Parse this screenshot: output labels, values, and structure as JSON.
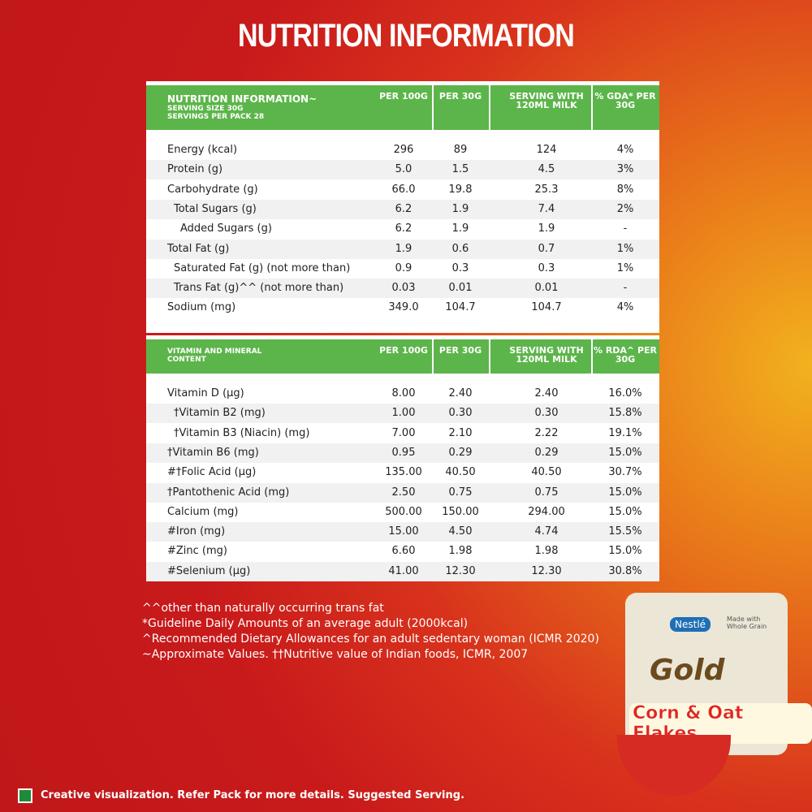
{
  "header": {
    "title": "NUTRITION INFORMATION"
  },
  "table1": {
    "title": "NUTRITION INFORMATION~",
    "serving_size": "SERVING SIZE 30G",
    "servings": "SERVINGS PER PACK 28",
    "columns": [
      "PER 100G",
      "PER 30G",
      "SERVING WITH 120ML MILK",
      "% GDA* PER 30G"
    ],
    "rows": [
      [
        "Energy (kcal)",
        "296",
        "89",
        "124",
        "4%"
      ],
      [
        "Protein (g)",
        "5.0",
        "1.5",
        "4.5",
        "3%"
      ],
      [
        "Carbohydrate (g)",
        "66.0",
        "19.8",
        "25.3",
        "8%"
      ],
      [
        "Total Sugars (g)",
        "6.2",
        "1.9",
        "7.4",
        "2%"
      ],
      [
        "Added Sugars (g)",
        "6.2",
        "1.9",
        "1.9",
        "-"
      ],
      [
        "Total Fat (g)",
        "1.9",
        "0.6",
        "0.7",
        "1%"
      ],
      [
        "Saturated Fat (g) (not more than)",
        "0.9",
        "0.3",
        "0.3",
        "1%"
      ],
      [
        "Trans Fat (g)^^ (not more than)",
        "0.03",
        "0.01",
        "0.01",
        "-"
      ],
      [
        "Sodium (mg)",
        "349.0",
        "104.7",
        "104.7",
        "4%"
      ]
    ]
  },
  "table2": {
    "title": "VITAMIN AND MINERAL CONTENT",
    "columns": [
      "PER 100G",
      "PER 30G",
      "SERVING WITH 120ML MILK",
      "% RDA^ PER 30G"
    ],
    "rows": [
      [
        "Vitamin D (µg)",
        "8.00",
        "2.40",
        "2.40",
        "16.0%"
      ],
      [
        "†Vitamin B2 (mg)",
        "1.00",
        "0.30",
        "0.30",
        "15.8%"
      ],
      [
        "†Vitamin B3 (Niacin) (mg)",
        "7.00",
        "2.10",
        "2.22",
        "19.1%"
      ],
      [
        "†Vitamin B6 (mg)",
        "0.95",
        "0.29",
        "0.29",
        "15.0%"
      ],
      [
        "#†Folic Acid (µg)",
        "135.00",
        "40.50",
        "40.50",
        "30.7%"
      ],
      [
        "†Pantothenic Acid (mg)",
        "2.50",
        "0.75",
        "0.75",
        "15.0%"
      ],
      [
        "Calcium (mg)",
        "500.00",
        "150.00",
        "294.00",
        "15.0%"
      ],
      [
        "#Iron (mg)",
        "15.00",
        "4.50",
        "4.74",
        "15.5%"
      ],
      [
        "#Zinc (mg)",
        "6.60",
        "1.98",
        "1.98",
        "15.0%"
      ],
      [
        "#Selenium (µg)",
        "41.00",
        "12.30",
        "12.30",
        "30.8%"
      ]
    ]
  },
  "footnotes": [
    "^^other than naturally occurring trans fat",
    "*Guideline Daily Amounts of an average adult (2000kcal)",
    "^Recommended Dietary Allowances for an adult sedentary woman (ICMR 2020)",
    "~Approximate Values. ††Nutritive value of Indian foods, ICMR, 2007"
  ],
  "product": {
    "brand": "Nestlé",
    "claim": "Made with Whole Grain",
    "name": "Gold",
    "variant": "Corn & Oat Flakes"
  },
  "disclaimer": "Creative visualization. Refer Pack for more details. Suggested Serving."
}
